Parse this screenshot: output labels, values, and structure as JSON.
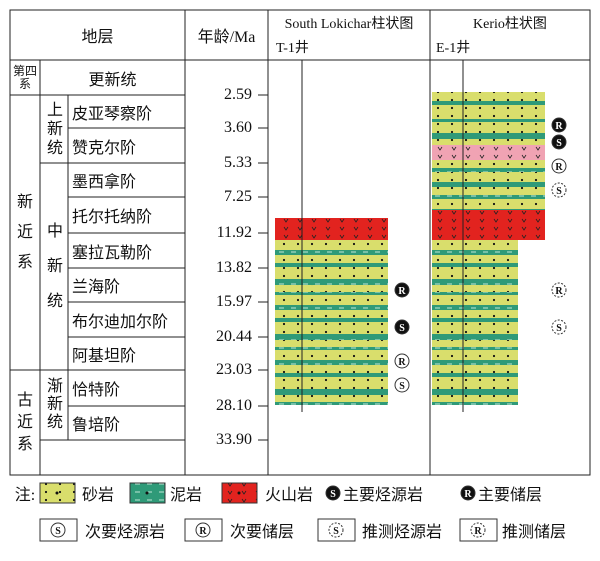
{
  "header": {
    "stratum": "地层",
    "age": "年龄/Ma",
    "well1_title": "South Lokichar柱状图",
    "well1_name": "T-1井",
    "well2_title": "Kerio柱状图",
    "well2_name": "E-1井"
  },
  "systems": [
    "第四系",
    "新近系",
    "古近系"
  ],
  "series": [
    "更新统",
    "上新统",
    "中新统",
    "渐新统"
  ],
  "stages": [
    "皮亚琴察阶",
    "赞克尔阶",
    "墨西拿阶",
    "托尔托纳阶",
    "塞拉瓦勒阶",
    "兰海阶",
    "布尔迪加尔阶",
    "阿基坦阶",
    "恰特阶",
    "鲁培阶"
  ],
  "ages": [
    "2.59",
    "3.60",
    "5.33",
    "7.25",
    "11.92",
    "13.82",
    "15.97",
    "20.44",
    "23.03",
    "28.10",
    "33.90"
  ],
  "wells": [
    {
      "markers": [
        "R",
        "S",
        "R",
        "S"
      ]
    },
    {
      "markers": [
        "R",
        "S",
        "R",
        "S",
        "R",
        "S"
      ]
    }
  ],
  "legend": {
    "note": "注:",
    "items": [
      {
        "label": "砂岩"
      },
      {
        "label": "泥岩"
      },
      {
        "label": "火山岩"
      },
      {
        "symbol": "S",
        "label": "主要烃源岩"
      },
      {
        "symbol": "R",
        "label": "主要储层"
      },
      {
        "symbol": "S",
        "label": "次要烃源岩"
      },
      {
        "symbol": "R",
        "label": "次要储层"
      },
      {
        "symbol": "S",
        "label": "推测烃源岩"
      },
      {
        "symbol": "R",
        "label": "推测储层"
      }
    ]
  }
}
